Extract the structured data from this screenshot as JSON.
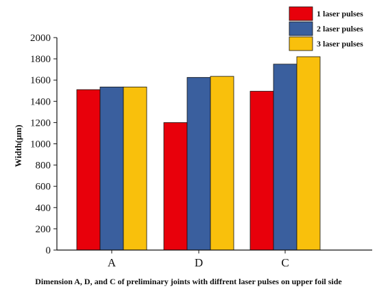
{
  "chart_data": {
    "type": "bar",
    "categories": [
      "A",
      "D",
      "C"
    ],
    "series": [
      {
        "name": "1 laser pulses",
        "values": [
          1510,
          1200,
          1495
        ],
        "color": "#e8000b"
      },
      {
        "name": "2 laser pulses",
        "values": [
          1535,
          1625,
          1750
        ],
        "color": "#3a5f9e"
      },
      {
        "name": "3 laser pulses",
        "values": [
          1535,
          1635,
          1820
        ],
        "color": "#f9c00c"
      }
    ],
    "title": "",
    "xlabel": "Dimension  A, D, and C  of preliminary joints with diffrent laser pulses on upper foil side",
    "ylabel": "Width(μm)",
    "ylim": [
      0,
      2000
    ],
    "yticks": [
      0,
      200,
      400,
      600,
      800,
      1000,
      1200,
      1400,
      1600,
      1800,
      2000
    ],
    "grid": false,
    "legend_position": "top-right"
  }
}
